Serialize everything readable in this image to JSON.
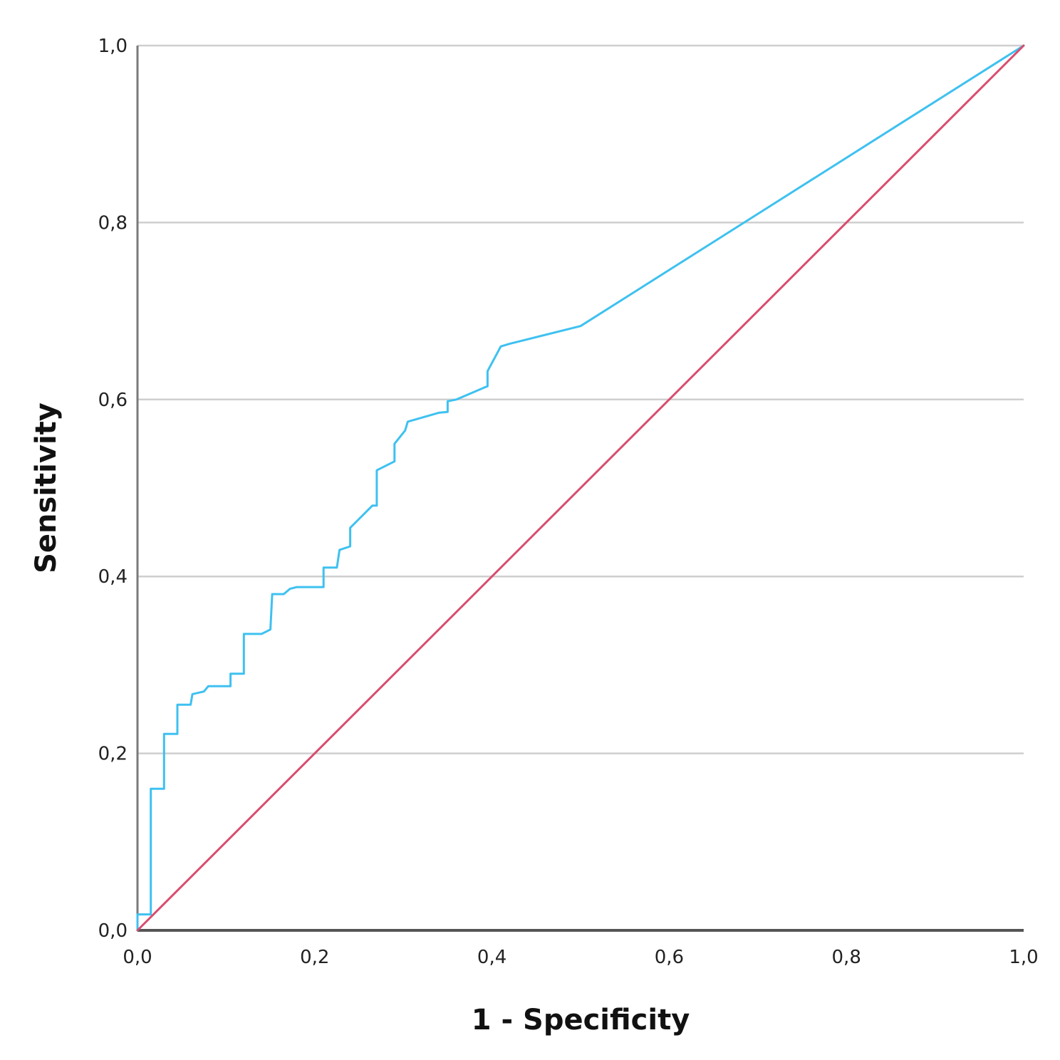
{
  "chart_data": {
    "type": "line",
    "title": "",
    "xlabel": "1 - Specificity",
    "ylabel": "Sensitivity",
    "xlim": [
      0,
      1
    ],
    "ylim": [
      0,
      1
    ],
    "x_ticks": [
      "0,0",
      "0,2",
      "0,4",
      "0,6",
      "0,8",
      "1,0"
    ],
    "y_ticks": [
      "0,0",
      "0,2",
      "0,4",
      "0,6",
      "0,8",
      "1,0"
    ],
    "grid": "horizontal",
    "legend": "none",
    "series": [
      {
        "color": "#3ec1f0",
        "points": [
          [
            0.0,
            0.0
          ],
          [
            0.0,
            0.018
          ],
          [
            0.015,
            0.018
          ],
          [
            0.015,
            0.16
          ],
          [
            0.03,
            0.16
          ],
          [
            0.03,
            0.222
          ],
          [
            0.045,
            0.222
          ],
          [
            0.045,
            0.255
          ],
          [
            0.06,
            0.255
          ],
          [
            0.062,
            0.267
          ],
          [
            0.075,
            0.27
          ],
          [
            0.08,
            0.276
          ],
          [
            0.105,
            0.276
          ],
          [
            0.105,
            0.29
          ],
          [
            0.12,
            0.29
          ],
          [
            0.12,
            0.335
          ],
          [
            0.14,
            0.335
          ],
          [
            0.15,
            0.34
          ],
          [
            0.152,
            0.38
          ],
          [
            0.165,
            0.38
          ],
          [
            0.172,
            0.386
          ],
          [
            0.18,
            0.388
          ],
          [
            0.21,
            0.388
          ],
          [
            0.21,
            0.41
          ],
          [
            0.225,
            0.41
          ],
          [
            0.228,
            0.43
          ],
          [
            0.24,
            0.434
          ],
          [
            0.24,
            0.455
          ],
          [
            0.25,
            0.465
          ],
          [
            0.257,
            0.472
          ],
          [
            0.265,
            0.48
          ],
          [
            0.27,
            0.48
          ],
          [
            0.27,
            0.52
          ],
          [
            0.28,
            0.525
          ],
          [
            0.29,
            0.53
          ],
          [
            0.29,
            0.55
          ],
          [
            0.302,
            0.565
          ],
          [
            0.305,
            0.575
          ],
          [
            0.34,
            0.585
          ],
          [
            0.35,
            0.586
          ],
          [
            0.35,
            0.598
          ],
          [
            0.36,
            0.6
          ],
          [
            0.39,
            0.613
          ],
          [
            0.395,
            0.615
          ],
          [
            0.395,
            0.632
          ],
          [
            0.41,
            0.66
          ],
          [
            0.42,
            0.663
          ],
          [
            0.5,
            0.683
          ],
          [
            1.0,
            1.0
          ]
        ]
      },
      {
        "color": "#d84d6e",
        "points": [
          [
            0.0,
            0.0
          ],
          [
            1.0,
            1.0
          ]
        ]
      }
    ]
  }
}
